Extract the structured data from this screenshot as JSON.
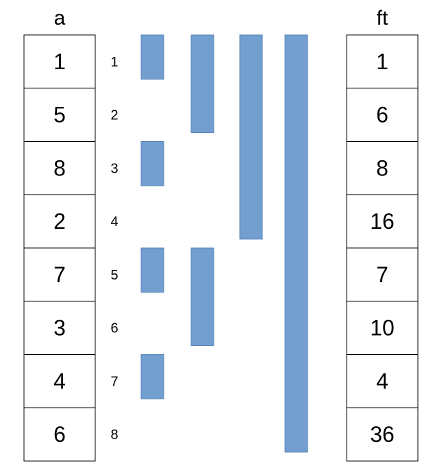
{
  "left_column": {
    "title": "a",
    "values": [
      "1",
      "5",
      "8",
      "2",
      "7",
      "3",
      "4",
      "6"
    ]
  },
  "right_column": {
    "title": "ft",
    "values": [
      "1",
      "6",
      "8",
      "16",
      "7",
      "10",
      "4",
      "36"
    ]
  },
  "indices": [
    "1",
    "2",
    "3",
    "4",
    "5",
    "6",
    "7",
    "8"
  ],
  "ranges": [
    {
      "level": 0,
      "start": 1,
      "end": 1
    },
    {
      "level": 0,
      "start": 3,
      "end": 3
    },
    {
      "level": 0,
      "start": 5,
      "end": 5
    },
    {
      "level": 0,
      "start": 7,
      "end": 7
    },
    {
      "level": 1,
      "start": 1,
      "end": 2
    },
    {
      "level": 1,
      "start": 5,
      "end": 6
    },
    {
      "level": 2,
      "start": 1,
      "end": 4
    },
    {
      "level": 3,
      "start": 1,
      "end": 8
    }
  ],
  "colors": {
    "range_fill": "#729fcf",
    "range_stroke": "#5a87b8",
    "cell_border": "#000000"
  }
}
